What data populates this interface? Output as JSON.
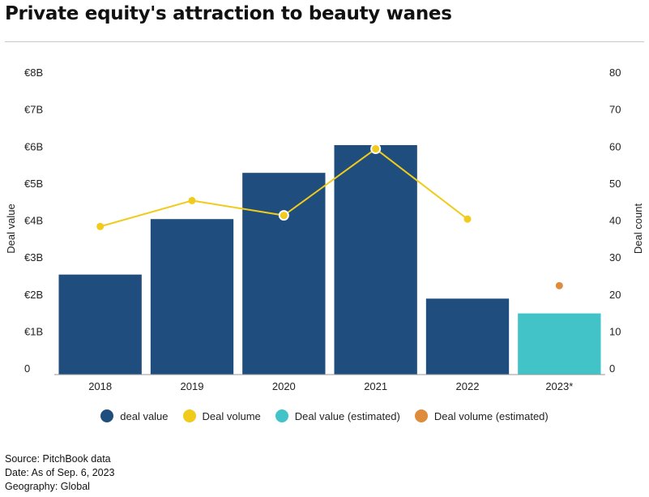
{
  "title": "Private equity's attraction to beauty wanes",
  "legend": [
    {
      "label": "deal value",
      "color": "#1f4e7e"
    },
    {
      "label": "Deal volume",
      "color": "#f0cb1b"
    },
    {
      "label": "Deal value (estimated)",
      "color": "#41c3c8"
    },
    {
      "label": "Deal volume (estimated)",
      "color": "#de8c3c"
    }
  ],
  "footer": {
    "source": "Source: PitchBook data",
    "date": "Date: As of Sep. 6, 2023",
    "geography": "Geography: Global"
  },
  "chart_data": {
    "type": "bar",
    "categories": [
      "2018",
      "2019",
      "2020",
      "2021",
      "2022",
      "2023*"
    ],
    "bar_series": {
      "name": "deal value",
      "values": [
        2.55,
        4.05,
        5.3,
        6.05,
        1.9,
        1.5
      ],
      "estimated_flags": [
        false,
        false,
        false,
        false,
        false,
        true
      ]
    },
    "line_series": {
      "name": "Deal volume",
      "values": [
        38.5,
        45.5,
        41.5,
        59.5,
        40.5,
        null
      ]
    },
    "estimated_point": {
      "name": "Deal volume (estimated)",
      "category": "2023*",
      "value": 22.5
    },
    "highlighted_points": [
      "2020",
      "2021"
    ],
    "ylabel": "Deal value",
    "y2label": "Deal count",
    "ylim": [
      0,
      8
    ],
    "y2lim": [
      0,
      80
    ],
    "y_ticks": [
      "0",
      "€1B",
      "€2B",
      "€3B",
      "€4B",
      "€5B",
      "€6B",
      "€7B",
      "€8B"
    ],
    "y2_ticks": [
      "0",
      "10",
      "20",
      "30",
      "40",
      "50",
      "60",
      "70",
      "80"
    ],
    "colors": {
      "bar": "#1f4e7e",
      "bar_estimated": "#41c3c8",
      "line": "#f0cb1b",
      "point_estimated": "#de8c3c"
    },
    "grid": false,
    "legend_position": "bottom"
  }
}
